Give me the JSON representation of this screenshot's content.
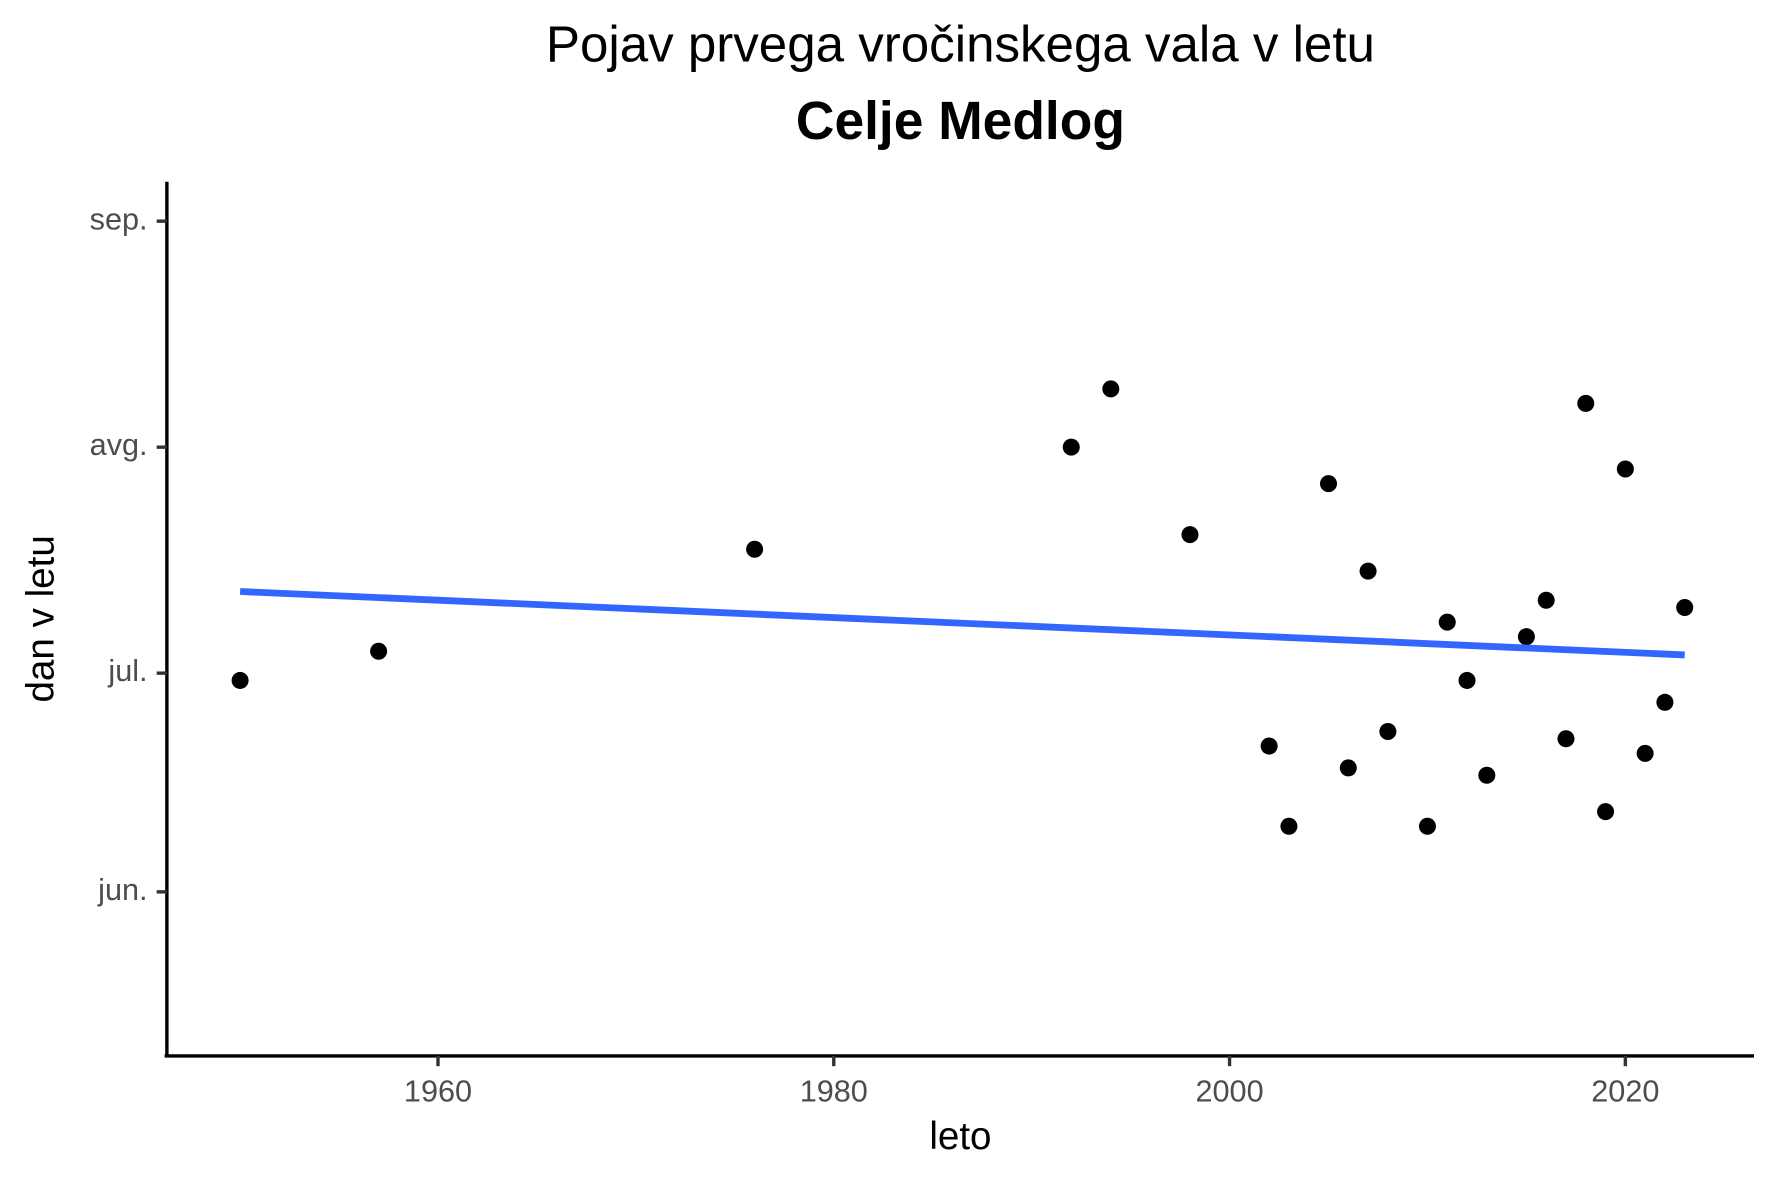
{
  "chart_data": {
    "type": "scatter",
    "title": "Pojav prvega vročinskega vala v letu",
    "subtitle": "Celje Medlog",
    "x_label": "leto",
    "y_label": "dan v letu",
    "x": [
      1950,
      1957,
      1976,
      1992,
      1994,
      1998,
      2002,
      2003,
      2005,
      2006,
      2007,
      2008,
      2010,
      2011,
      2012,
      2013,
      2015,
      2016,
      2017,
      2018,
      2019,
      2020,
      2021,
      2022,
      2023
    ],
    "values": [
      181,
      185,
      199,
      213,
      221,
      201,
      172,
      161,
      208,
      169,
      196,
      174,
      161,
      189,
      181,
      168,
      187,
      192,
      173,
      219,
      163,
      210,
      171,
      178,
      191
    ],
    "color": "#000000",
    "trend": {
      "x": [
        1950,
        2023
      ],
      "values": [
        193.2,
        184.5
      ],
      "color": "#3366ff"
    },
    "xlim": [
      1946.3,
      2026.5
    ],
    "ylim": [
      129.8,
      249.4
    ],
    "xticks": [
      1960,
      1980,
      2000,
      2020
    ],
    "yticks": [
      {
        "value": 152,
        "label": "jun."
      },
      {
        "value": 182,
        "label": "jul."
      },
      {
        "value": 213,
        "label": "avg."
      },
      {
        "value": 244,
        "label": "sep."
      }
    ],
    "grid": false
  }
}
